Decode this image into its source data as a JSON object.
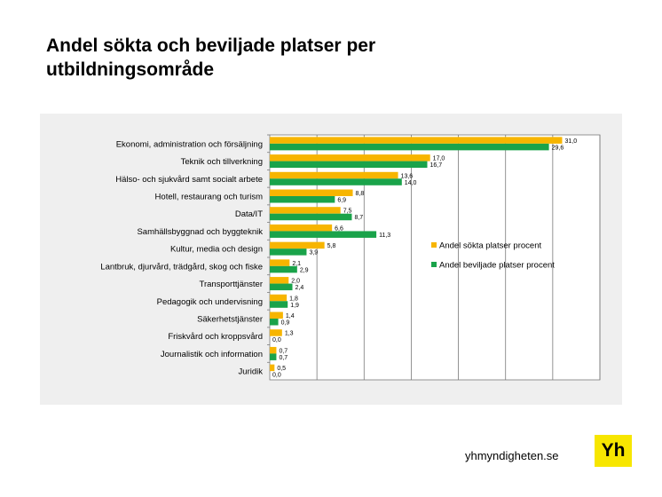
{
  "page": {
    "title": "Andel sökta och beviljade platser per utbildningsområde",
    "footer_site": "yhmyndigheten.se",
    "logo_text": "Yh"
  },
  "colors": {
    "sokta": "#f7b500",
    "beviljade": "#1aa34a",
    "panel_background": "#efefef",
    "logo_background": "#f7e600"
  },
  "chart_data": {
    "type": "bar",
    "orientation": "horizontal",
    "title": "",
    "xlabel": "",
    "ylabel": "",
    "xlim": [
      0,
      35
    ],
    "grid": true,
    "legend_position": "right",
    "categories": [
      "Ekonomi, administration och försäljning",
      "Teknik och tillverkning",
      "Hälso- och sjukvård samt socialt arbete",
      "Hotell, restaurang och turism",
      "Data/IT",
      "Samhällsbyggnad och byggteknik",
      "Kultur, media och design",
      "Lantbruk, djurvård, trädgård, skog och fiske",
      "Transporttjänster",
      "Pedagogik och undervisning",
      "Säkerhetstjänster",
      "Friskvård och kroppsvård",
      "Journalistik och information",
      "Juridik"
    ],
    "series": [
      {
        "name": "Andel sökta platser procent",
        "values": [
          31.0,
          17.0,
          13.6,
          8.8,
          7.5,
          6.6,
          5.8,
          2.1,
          2.0,
          1.8,
          1.4,
          1.3,
          0.7,
          0.5
        ],
        "labels": [
          "31,0",
          "17,0",
          "13,6",
          "8,8",
          "7,5",
          "6,6",
          "5,8",
          "2,1",
          "2,0",
          "1,8",
          "1,4",
          "1,3",
          "0,7",
          "0,5"
        ]
      },
      {
        "name": "Andel beviljade platser procent",
        "values": [
          29.6,
          16.7,
          14.0,
          6.9,
          8.7,
          11.3,
          3.9,
          2.9,
          2.4,
          1.9,
          0.9,
          0.0,
          0.7,
          0.0
        ],
        "labels": [
          "29,6",
          "16,7",
          "14,0",
          "6,9",
          "8,7",
          "11,3",
          "3,9",
          "2,9",
          "2,4",
          "1,9",
          "0,9",
          "0,0",
          "0,7",
          "0,0"
        ]
      }
    ]
  }
}
